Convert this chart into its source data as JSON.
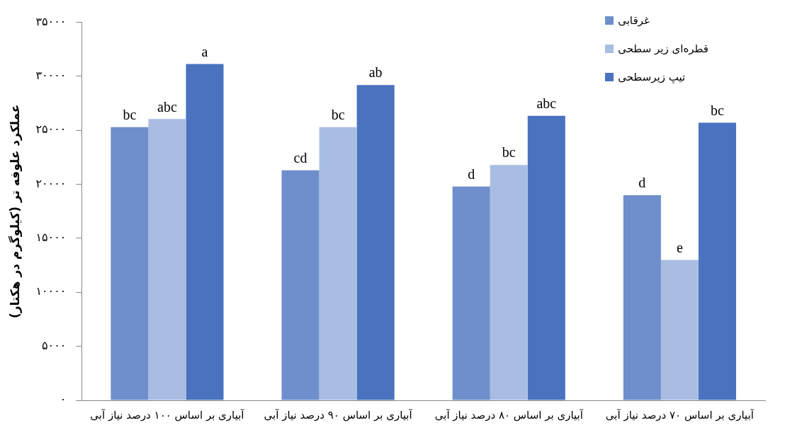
{
  "chart_data": {
    "type": "bar",
    "ylabel": "عملکرد علوفه تر (کیلوگرم در هکتار)",
    "categories": [
      "آبیاری بر اساس ۱۰۰ درصد نیاز آبی",
      "آبیاری بر اساس ۹۰ درصد نیاز آبی",
      "آبیاری بر اساس ۸۰ درصد نیاز آبی",
      "آبیاری بر اساس ۷۰ درصد نیاز آبی"
    ],
    "series": [
      {
        "name": "غرقابی",
        "color": "#6f8fcc",
        "values": [
          25300,
          21300,
          19800,
          19000
        ],
        "value_labels": [
          "bc",
          "cd",
          "d",
          "d"
        ]
      },
      {
        "name": "قطره‌ای زیر سطحی",
        "color": "#a9bde3",
        "values": [
          26050,
          25300,
          21800,
          13000
        ],
        "value_labels": [
          "abc",
          "bc",
          "bc",
          "e"
        ]
      },
      {
        "name": "تیپ زیرسطحی",
        "color": "#4a72bf",
        "values": [
          31150,
          29200,
          26350,
          25700
        ],
        "value_labels": [
          "a",
          "ab",
          "abc",
          "bc"
        ]
      }
    ],
    "ylim": [
      0,
      35000
    ],
    "yticks": [
      {
        "value": 0,
        "label": "۰"
      },
      {
        "value": 5000,
        "label": "۵۰۰۰"
      },
      {
        "value": 10000,
        "label": "۱۰۰۰۰"
      },
      {
        "value": 15000,
        "label": "۱۵۰۰۰"
      },
      {
        "value": 20000,
        "label": "۲۰۰۰۰"
      },
      {
        "value": 25000,
        "label": "۲۵۰۰۰"
      },
      {
        "value": 30000,
        "label": "۳۰۰۰۰"
      },
      {
        "value": 35000,
        "label": "۳۵۰۰۰"
      }
    ],
    "grid": false,
    "legend": "top right"
  }
}
